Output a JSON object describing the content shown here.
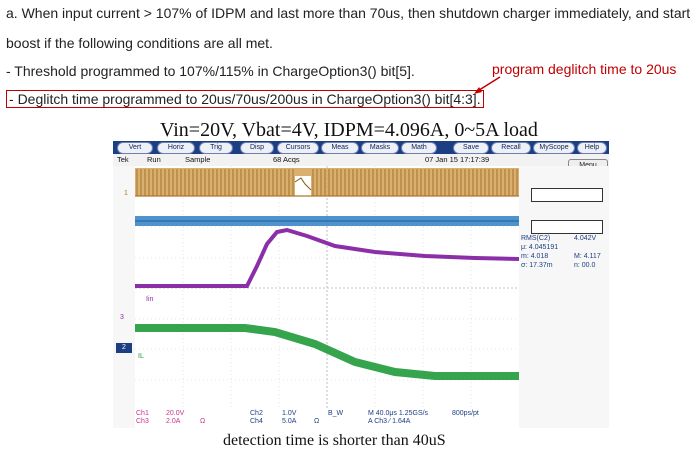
{
  "text": {
    "line1": "a. When input current > 107% of IDPM and last more than 70us, then shutdown charger immediately, and start",
    "line2": "boost if the following conditions are all met.",
    "line3": "- Threshold programmed to 107%/115% in ChargeOption3() bit[5].",
    "line4_prefix": "-",
    "line4_boxed": "Deglitch time programmed to 20us/70us/200us in ChargeOption3() bit[4:3].",
    "callout": "program deglitch time to 20us"
  },
  "scope": {
    "title": "Vin=20V, Vbat=4V, IDPM=4.096A, 0~5A load",
    "toolbar": [
      "Vert",
      "Horiz",
      "Trig",
      "Disp",
      "Cursors",
      "Meas",
      "Masks",
      "Math",
      "Save",
      "Recall",
      "MyScope",
      "Help"
    ],
    "status": {
      "brand": "Tek",
      "mode": "Run",
      "acq": "Sample",
      "acqs": "68 Acqs",
      "datetime": "07 Jan 15 17:17:39"
    },
    "menu": "Menu",
    "markers": {
      "ch1": "1",
      "ch3": "3",
      "ch2": "2",
      "lin": "Iin",
      "il": "IL"
    },
    "measurements": {
      "m1_label": "RMS(C2)",
      "m1_value": "4.042V",
      "m2": "μ: 4.045191",
      "m3_left": "m: 4.018",
      "m3_right": "M: 4.117",
      "m4_left": "σ: 17.37m",
      "m4_right": "n: 00.0"
    },
    "bottom": {
      "ch1": "Ch1",
      "ch1_val": "20.0V",
      "ch3": "Ch3",
      "ch3_val": "2.0A",
      "ch3_unit": "Ω",
      "ch2": "Ch2",
      "ch2_val": "1.0V",
      "ch4": "Ch4",
      "ch4_val": "5.0A",
      "ch4_unit": "Ω",
      "bw": "B_W",
      "timebase": "M 40.0μs 1.25GS/s",
      "rate": "800ps/pt",
      "trigger": "A  Ch3  ⁄  1.64A"
    },
    "caption": "detection time is shorter than 40uS"
  }
}
